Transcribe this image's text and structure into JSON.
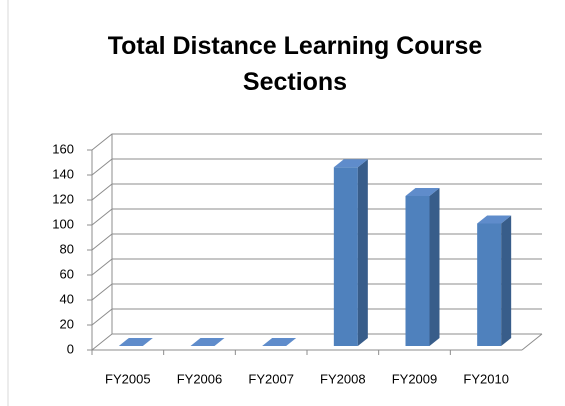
{
  "chart_data": {
    "type": "bar3d",
    "title": "Total Distance Learning Course Sections",
    "categories": [
      "FY2005",
      "FY2006",
      "FY2007",
      "FY2008",
      "FY2009",
      "FY2010"
    ],
    "values": [
      0,
      0,
      0,
      143,
      120,
      98
    ],
    "color": "#4f81bd",
    "ylim": [
      0,
      160
    ],
    "yticks": [
      0,
      20,
      40,
      60,
      80,
      100,
      120,
      140,
      160
    ],
    "grid": true
  }
}
